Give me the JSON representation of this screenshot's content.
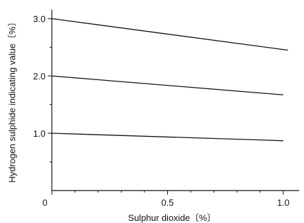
{
  "chart_data": {
    "type": "line",
    "xlabel": "Sulphur dioxide〔%〕",
    "ylabel": "Hydrogen sulphide indicating value〔%〕",
    "xlim": [
      0,
      1.1
    ],
    "ylim": [
      0,
      3.2
    ],
    "x_ticks": [
      {
        "value": 0,
        "label": "0"
      },
      {
        "value": 0.5,
        "label": "0.5"
      },
      {
        "value": 1.0,
        "label": "1.0"
      }
    ],
    "x_minor_ticks": [
      0.1,
      0.2,
      0.3,
      0.4,
      0.6,
      0.7,
      0.8,
      0.9
    ],
    "y_ticks": [
      {
        "value": 1.0,
        "label": "1.0"
      },
      {
        "value": 2.0,
        "label": "2.0"
      },
      {
        "value": 3.0,
        "label": "3.0"
      }
    ],
    "y_minor_ticks": [
      0.5,
      1.5,
      2.5
    ],
    "grid": false,
    "series": [
      {
        "x": [
          0,
          1.02
        ],
        "y": [
          3.0,
          2.45
        ]
      },
      {
        "x": [
          0,
          1.0
        ],
        "y": [
          2.0,
          1.67
        ]
      },
      {
        "x": [
          0,
          1.0
        ],
        "y": [
          1.0,
          0.87
        ]
      }
    ]
  }
}
